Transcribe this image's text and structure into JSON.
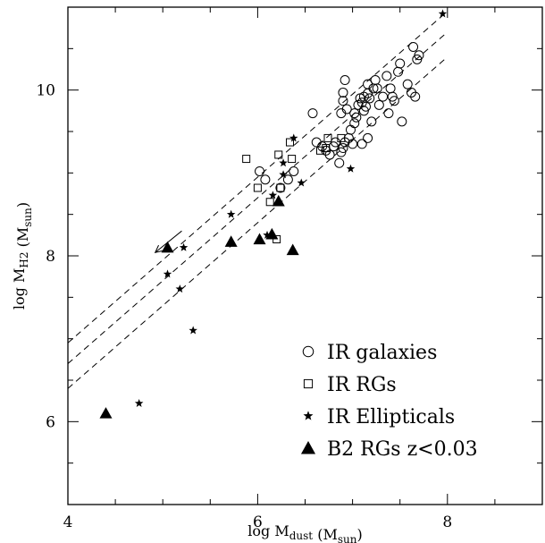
{
  "chart_data": {
    "type": "scatter",
    "title": "",
    "xlabel": "log M_dust (M_sun)",
    "ylabel": "log M_H2 (M_sun)",
    "xlim": [
      4,
      9
    ],
    "ylim": [
      5,
      11
    ],
    "x_ticks": [
      4,
      6,
      8
    ],
    "y_ticks": [
      6,
      8,
      10
    ],
    "x_tick_labels": [
      "4",
      "6",
      "8"
    ],
    "y_tick_labels": [
      "6",
      "8",
      "10"
    ],
    "legend_position": "bottom-right",
    "grid": false,
    "series": [
      {
        "name": "IR galaxies",
        "marker": "open-circle",
        "points": [
          [
            6.02,
            9.02
          ],
          [
            6.08,
            8.92
          ],
          [
            6.24,
            8.82
          ],
          [
            6.32,
            8.92
          ],
          [
            6.38,
            9.02
          ],
          [
            6.58,
            9.72
          ],
          [
            6.62,
            9.37
          ],
          [
            6.68,
            9.32
          ],
          [
            6.72,
            9.27
          ],
          [
            6.76,
            9.22
          ],
          [
            6.8,
            9.32
          ],
          [
            6.82,
            9.37
          ],
          [
            6.86,
            9.12
          ],
          [
            6.88,
            9.25
          ],
          [
            6.9,
            9.3
          ],
          [
            6.92,
            9.37
          ],
          [
            6.88,
            9.72
          ],
          [
            6.9,
            9.87
          ],
          [
            6.9,
            9.97
          ],
          [
            6.92,
            10.12
          ],
          [
            6.94,
            9.77
          ],
          [
            6.96,
            9.42
          ],
          [
            6.98,
            9.52
          ],
          [
            7.0,
            9.35
          ],
          [
            7.02,
            9.6
          ],
          [
            7.02,
            9.72
          ],
          [
            7.04,
            9.67
          ],
          [
            7.06,
            9.82
          ],
          [
            7.08,
            9.9
          ],
          [
            7.1,
            9.85
          ],
          [
            7.1,
            9.35
          ],
          [
            7.12,
            9.75
          ],
          [
            7.12,
            9.92
          ],
          [
            7.14,
            9.8
          ],
          [
            7.16,
            9.42
          ],
          [
            7.16,
            10.07
          ],
          [
            7.18,
            9.9
          ],
          [
            7.2,
            9.62
          ],
          [
            7.22,
            10.02
          ],
          [
            7.24,
            10.12
          ],
          [
            7.26,
            10.02
          ],
          [
            7.28,
            9.82
          ],
          [
            7.32,
            9.92
          ],
          [
            7.36,
            10.17
          ],
          [
            7.38,
            9.72
          ],
          [
            7.4,
            10.02
          ],
          [
            7.42,
            9.92
          ],
          [
            7.44,
            9.87
          ],
          [
            7.48,
            10.22
          ],
          [
            7.5,
            10.32
          ],
          [
            7.52,
            9.62
          ],
          [
            7.58,
            10.07
          ],
          [
            7.62,
            9.97
          ],
          [
            7.66,
            9.92
          ],
          [
            7.64,
            10.52
          ],
          [
            7.68,
            10.37
          ],
          [
            7.7,
            10.42
          ],
          [
            7.16,
            9.96
          ]
        ]
      },
      {
        "name": "IR RGs",
        "marker": "open-square",
        "points": [
          [
            5.88,
            9.17
          ],
          [
            6.0,
            8.82
          ],
          [
            6.13,
            8.65
          ],
          [
            6.22,
            9.22
          ],
          [
            6.24,
            8.82
          ],
          [
            6.34,
            9.37
          ],
          [
            6.36,
            9.17
          ],
          [
            6.66,
            9.27
          ],
          [
            6.72,
            9.3
          ],
          [
            6.74,
            9.42
          ],
          [
            6.88,
            9.42
          ],
          [
            6.2,
            8.2
          ]
        ]
      },
      {
        "name": "IR Ellipticals",
        "marker": "star",
        "points": [
          [
            4.75,
            6.22
          ],
          [
            5.32,
            7.1
          ],
          [
            5.18,
            7.6
          ],
          [
            5.05,
            7.78
          ],
          [
            5.22,
            8.1
          ],
          [
            5.72,
            8.5
          ],
          [
            6.1,
            8.25
          ],
          [
            6.16,
            8.73
          ],
          [
            6.27,
            8.98
          ],
          [
            6.27,
            9.12
          ],
          [
            6.38,
            9.42
          ],
          [
            6.46,
            8.88
          ],
          [
            6.98,
            9.05
          ],
          [
            7.95,
            10.92
          ]
        ]
      },
      {
        "name": "B2 RGs z<0.03",
        "marker": "filled-triangle",
        "points": [
          [
            4.4,
            6.1
          ],
          [
            5.05,
            8.1
          ],
          [
            5.72,
            8.17
          ],
          [
            6.02,
            8.2
          ],
          [
            6.15,
            8.26
          ],
          [
            6.22,
            8.66
          ],
          [
            6.37,
            8.07
          ]
        ]
      }
    ],
    "upper_limit_arrow": {
      "from": [
        5.2,
        8.3
      ],
      "to": [
        4.92,
        8.04
      ]
    },
    "reference_lines": [
      {
        "style": "dashed",
        "from": [
          4,
          6.95
        ],
        "to": [
          8,
          10.95
        ]
      },
      {
        "style": "dashed",
        "from": [
          4,
          6.7
        ],
        "to": [
          8,
          10.7
        ]
      },
      {
        "style": "dashed",
        "from": [
          4,
          6.4
        ],
        "to": [
          8,
          10.4
        ]
      }
    ]
  }
}
